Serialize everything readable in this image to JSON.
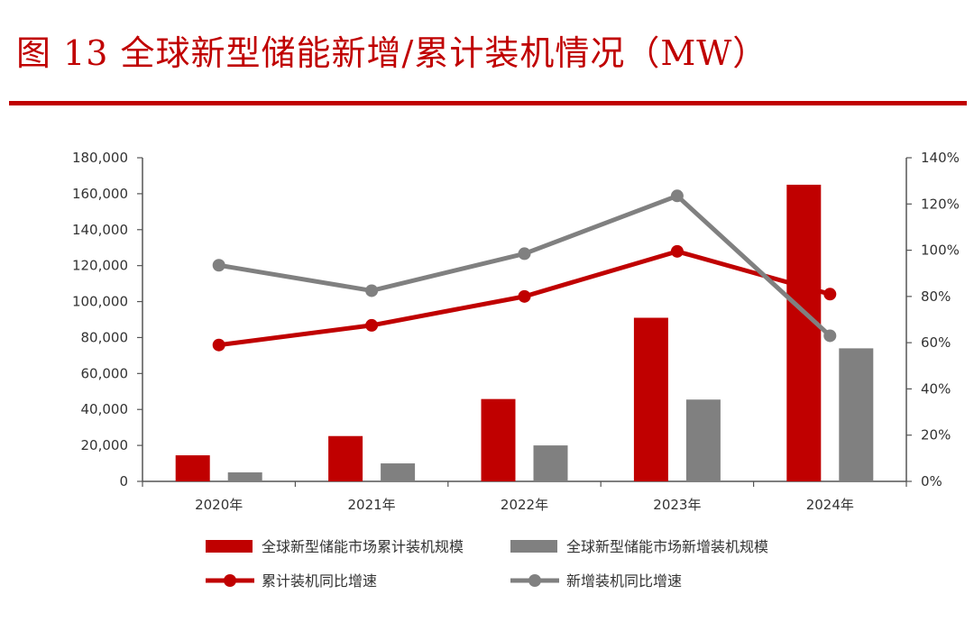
{
  "figure": {
    "title": "图 13  全球新型储能新增/累计装机情况（MW）"
  },
  "chart_data": {
    "type": "bar",
    "categories": [
      "2020年",
      "2021年",
      "2022年",
      "2023年",
      "2024年"
    ],
    "y_left": {
      "lim": [
        0,
        180000
      ],
      "ticks": [
        0,
        20000,
        40000,
        60000,
        80000,
        100000,
        120000,
        140000,
        160000,
        180000
      ],
      "tick_labels": [
        "0",
        "20,000",
        "40,000",
        "60,000",
        "80,000",
        "100,000",
        "120,000",
        "140,000",
        "160,000",
        "180,000"
      ]
    },
    "y_right": {
      "lim": [
        0,
        1.4
      ],
      "ticks": [
        0,
        0.2,
        0.4,
        0.6,
        0.8,
        1.0,
        1.2,
        1.4
      ],
      "tick_labels": [
        "0%",
        "20%",
        "40%",
        "60%",
        "80%",
        "100%",
        "120%",
        "140%"
      ]
    },
    "bar_series": [
      {
        "name": "全球新型储能市场累计装机规模",
        "color": "#c00000",
        "values": [
          14500,
          25200,
          45800,
          91000,
          165000
        ]
      },
      {
        "name": "全球新型储能市场新增装机规模",
        "color": "#808080",
        "values": [
          5000,
          10000,
          20000,
          45500,
          74000
        ]
      }
    ],
    "line_series": [
      {
        "name": "累计装机同比增速",
        "color": "#c00000",
        "values": [
          0.59,
          0.675,
          0.8,
          0.995,
          0.81
        ]
      },
      {
        "name": "新增装机同比增速",
        "color": "#808080",
        "values": [
          0.935,
          0.825,
          0.985,
          1.235,
          0.63
        ]
      }
    ],
    "grid": false,
    "legend_position": "bottom"
  }
}
